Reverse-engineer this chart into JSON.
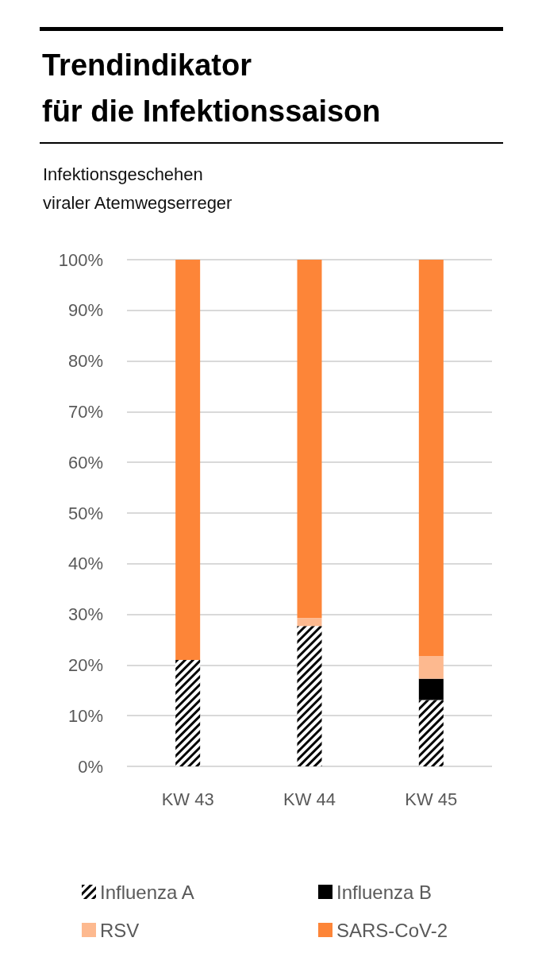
{
  "chart_data": {
    "type": "bar",
    "title": "Trendindikator\nfür die Infektionssaison",
    "subtitle": "Infektionsgeschehen\nviraler Atemwegserreger",
    "categories": [
      "KW 43",
      "KW 44",
      "KW 45"
    ],
    "stacked": true,
    "series": [
      {
        "name": "Influenza A",
        "color": "#000000",
        "values": [
          21,
          27.7,
          13.1
        ]
      },
      {
        "name": "Influenza B",
        "color": "#000000",
        "values": [
          0,
          0,
          4.2
        ]
      },
      {
        "name": "RSV",
        "color": "#fdb98f",
        "values": [
          0,
          1.6,
          4.5
        ]
      },
      {
        "name": "SARS-CoV-2",
        "color": "#fd8538",
        "values": [
          79,
          70.7,
          78.2
        ]
      }
    ],
    "ylim": [
      0,
      100
    ],
    "yticks": [
      {
        "value": 0,
        "label": "0%"
      },
      {
        "value": 10,
        "label": "10%"
      },
      {
        "value": 20,
        "label": "20%"
      },
      {
        "value": 30,
        "label": "30%"
      },
      {
        "value": 40,
        "label": "40%"
      },
      {
        "value": 50,
        "label": "50%"
      },
      {
        "value": 60,
        "label": "60%"
      },
      {
        "value": 70,
        "label": "70%"
      },
      {
        "value": 80,
        "label": "80%"
      },
      {
        "value": 90,
        "label": "90%"
      },
      {
        "value": 100,
        "label": "100%"
      }
    ],
    "grid": "y",
    "legend": "bottom"
  }
}
